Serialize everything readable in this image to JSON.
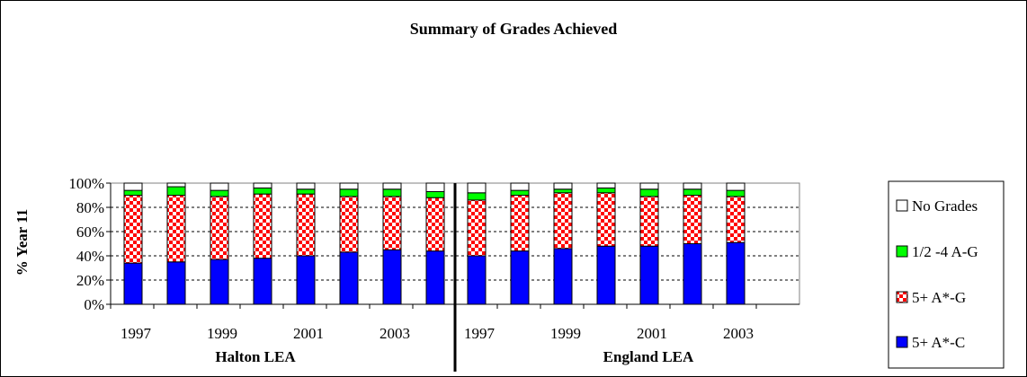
{
  "chart_data": {
    "type": "bar",
    "stacked": true,
    "percent_stacked": true,
    "title": "Summary of Grades Achieved",
    "ylabel": "% Year 11",
    "ylim": [
      0,
      100
    ],
    "y_ticks": [
      "0%",
      "20%",
      "40%",
      "60%",
      "80%",
      "100%"
    ],
    "grid": true,
    "legend_position": "right",
    "groups": [
      {
        "name": "Halton LEA",
        "categories": [
          "1997",
          "1998",
          "1999",
          "2000",
          "2001",
          "2002",
          "2003",
          "2004"
        ],
        "tick_labels": [
          "1997",
          "1999",
          "2001",
          "2003"
        ]
      },
      {
        "name": "England LEA",
        "categories": [
          "1997",
          "1998",
          "1999",
          "2000",
          "2001",
          "2002",
          "2003"
        ],
        "tick_labels": [
          "1997",
          "1999",
          "2001",
          "2003"
        ]
      }
    ],
    "series": [
      {
        "name": "5+ A*-C",
        "color": "#0000ff",
        "pattern": "solid",
        "values": [
          [
            34,
            35,
            37,
            38,
            40,
            43,
            45,
            44
          ],
          [
            40,
            44,
            46,
            48,
            48,
            50,
            51
          ]
        ]
      },
      {
        "name": "5+ A*-G",
        "color": "#ff0000",
        "pattern": "checker",
        "values": [
          [
            56,
            55,
            52,
            53,
            51,
            46,
            44,
            44
          ],
          [
            46,
            46,
            46,
            44,
            41,
            40,
            38
          ]
        ]
      },
      {
        "name": "1/2 -4 A-G",
        "color": "#00ff00",
        "pattern": "solid",
        "values": [
          [
            4,
            7,
            5,
            5,
            4,
            6,
            6,
            5
          ],
          [
            6,
            4,
            3,
            4,
            6,
            5,
            5
          ]
        ]
      },
      {
        "name": "No Grades",
        "color": "#ffffff",
        "pattern": "solid",
        "values": [
          [
            6,
            3,
            6,
            4,
            5,
            5,
            5,
            7
          ],
          [
            8,
            6,
            5,
            4,
            5,
            5,
            6
          ]
        ]
      }
    ],
    "legend_order": [
      "No Grades",
      "1/2 -4 A-G",
      "5+ A*-G",
      "5+ A*-C"
    ]
  }
}
